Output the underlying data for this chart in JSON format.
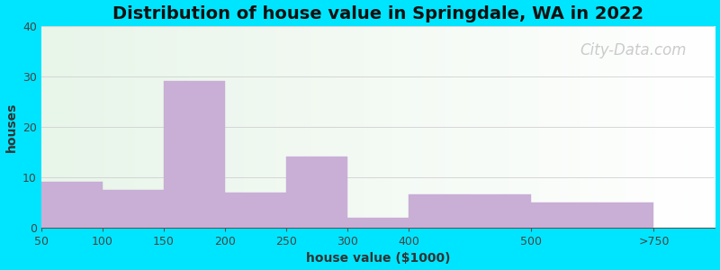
{
  "title": "Distribution of house value in Springdale, WA in 2022",
  "xlabel": "house value ($1000)",
  "ylabel": "houses",
  "bar_lefts": [
    0,
    1,
    2,
    3,
    4,
    5,
    6,
    8
  ],
  "bar_widths": [
    1,
    1,
    1,
    1,
    1,
    1,
    2,
    2
  ],
  "bar_heights": [
    9,
    7.5,
    29,
    7,
    14,
    2,
    6.5,
    5
  ],
  "xtick_positions": [
    0,
    1,
    2,
    3,
    4,
    5,
    6,
    8,
    10
  ],
  "xtick_labels": [
    "50",
    "100",
    "150",
    "200",
    "250",
    "300",
    "400",
    "500",
    ">750"
  ],
  "bar_color": "#c9aed6",
  "ylim": [
    0,
    40
  ],
  "yticks": [
    0,
    10,
    20,
    30,
    40
  ],
  "xlim": [
    0,
    11
  ],
  "background_outer": "#00e5ff",
  "grid_color": "#d0d0d0",
  "title_fontsize": 14,
  "axis_label_fontsize": 10,
  "tick_fontsize": 9,
  "watermark_text": "City-Data.com",
  "watermark_color": "#bbbbbb",
  "watermark_fontsize": 12
}
